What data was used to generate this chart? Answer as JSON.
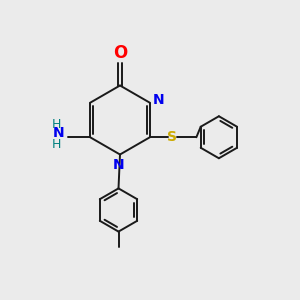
{
  "background_color": "#ebebeb",
  "bond_color": "#1a1a1a",
  "atom_colors": {
    "O": "#ff0000",
    "N": "#0000ee",
    "S": "#ccaa00",
    "NH2_H": "#008080",
    "C": "#1a1a1a"
  },
  "lw": 1.4
}
